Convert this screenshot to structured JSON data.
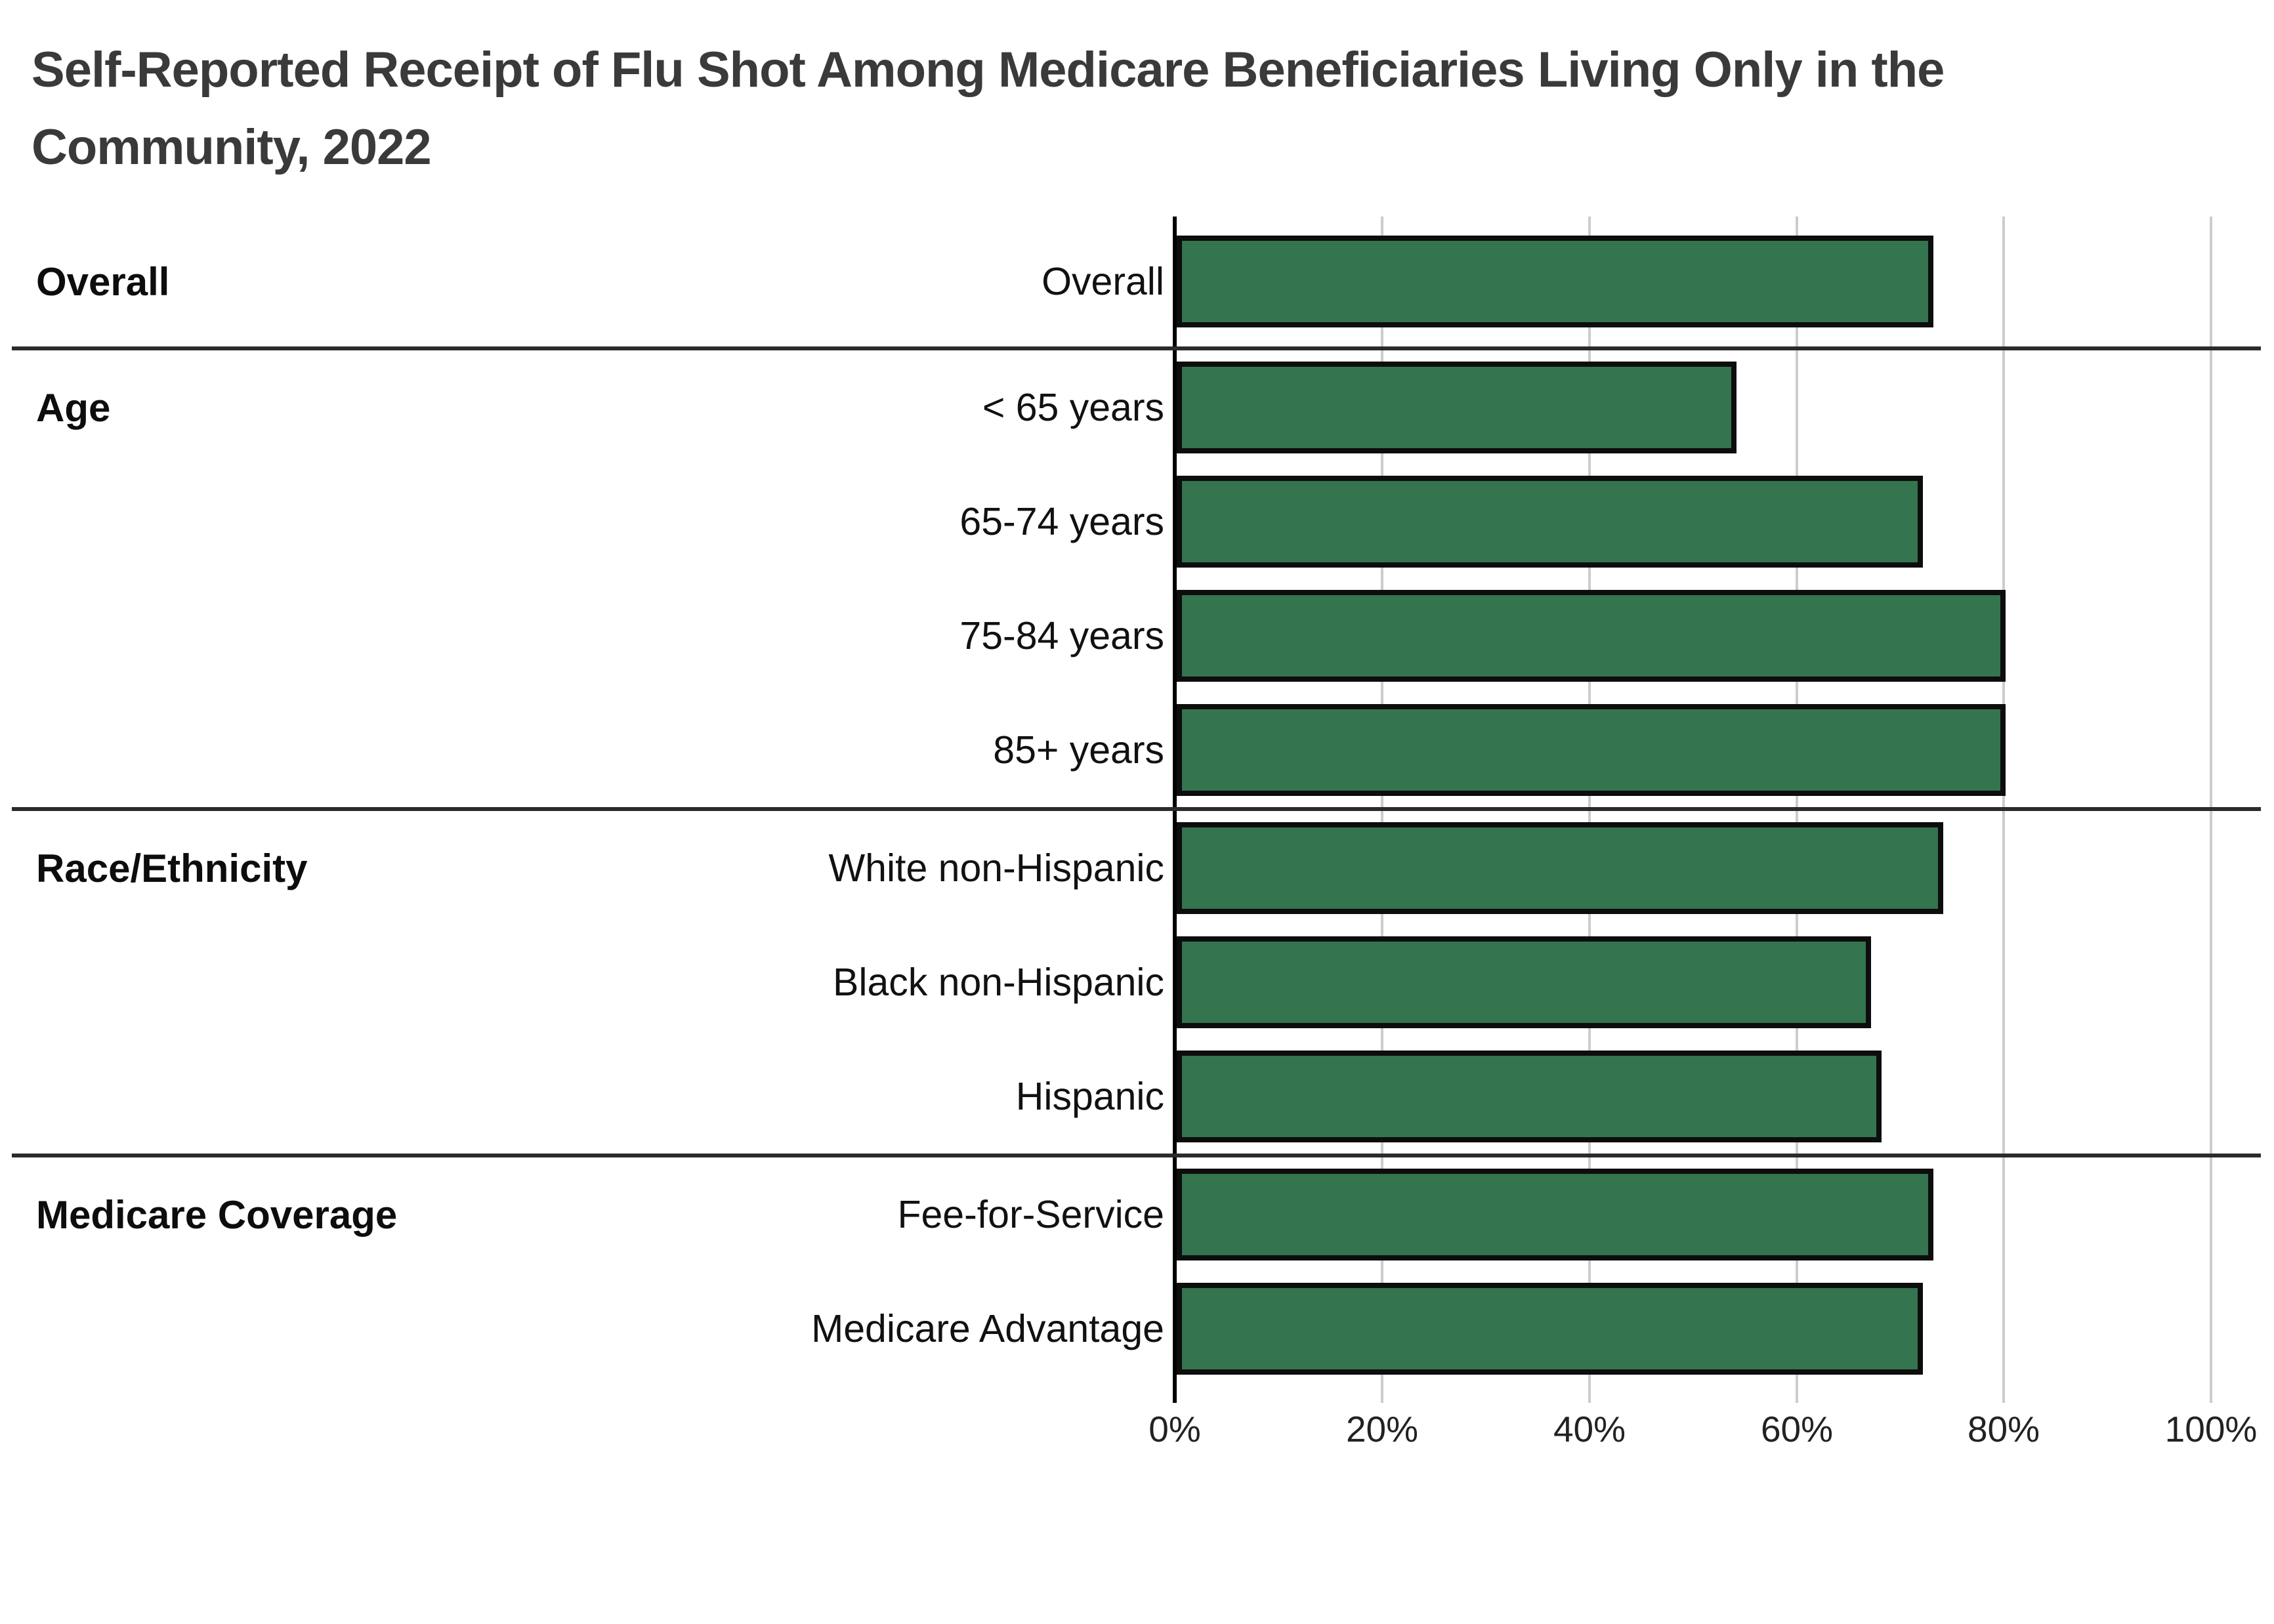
{
  "page": {
    "title_line1": "Self-Reported Receipt of Flu Shot Among Medicare Beneficiaries Living Only in the",
    "title_line2": "Community, 2022"
  },
  "chart_data": {
    "type": "bar",
    "orientation": "horizontal",
    "title": "Self-Reported Receipt of Flu Shot Among Medicare Beneficiaries Living Only in the Community, 2022",
    "unit": "percent",
    "xlim": [
      0,
      100
    ],
    "x_ticks": [
      "0%",
      "20%",
      "40%",
      "60%",
      "80%",
      "100%"
    ],
    "grid": "vertical gridlines at 20% intervals",
    "bar_fill_color": "#34744F",
    "bar_border_color": "#0d0d0d",
    "gridline_color": "#cccccc",
    "axis_line_color": "#000000",
    "separator_color": "#2b2b2b",
    "groups": [
      {
        "label": "Overall",
        "rows": [
          {
            "label": "Overall",
            "value": 73
          }
        ]
      },
      {
        "label": "Age",
        "rows": [
          {
            "label": "< 65 years",
            "value": 54
          },
          {
            "label": "65-74 years",
            "value": 72
          },
          {
            "label": "75-84 years",
            "value": 80
          },
          {
            "label": "85+ years",
            "value": 80
          }
        ]
      },
      {
        "label": "Race/Ethnicity",
        "rows": [
          {
            "label": "White non-Hispanic",
            "value": 74
          },
          {
            "label": "Black non-Hispanic",
            "value": 67
          },
          {
            "label": "Hispanic",
            "value": 68
          }
        ]
      },
      {
        "label": "Medicare Coverage",
        "rows": [
          {
            "label": "Fee-for-Service",
            "value": 73
          },
          {
            "label": "Medicare Advantage",
            "value": 72
          }
        ]
      }
    ]
  }
}
